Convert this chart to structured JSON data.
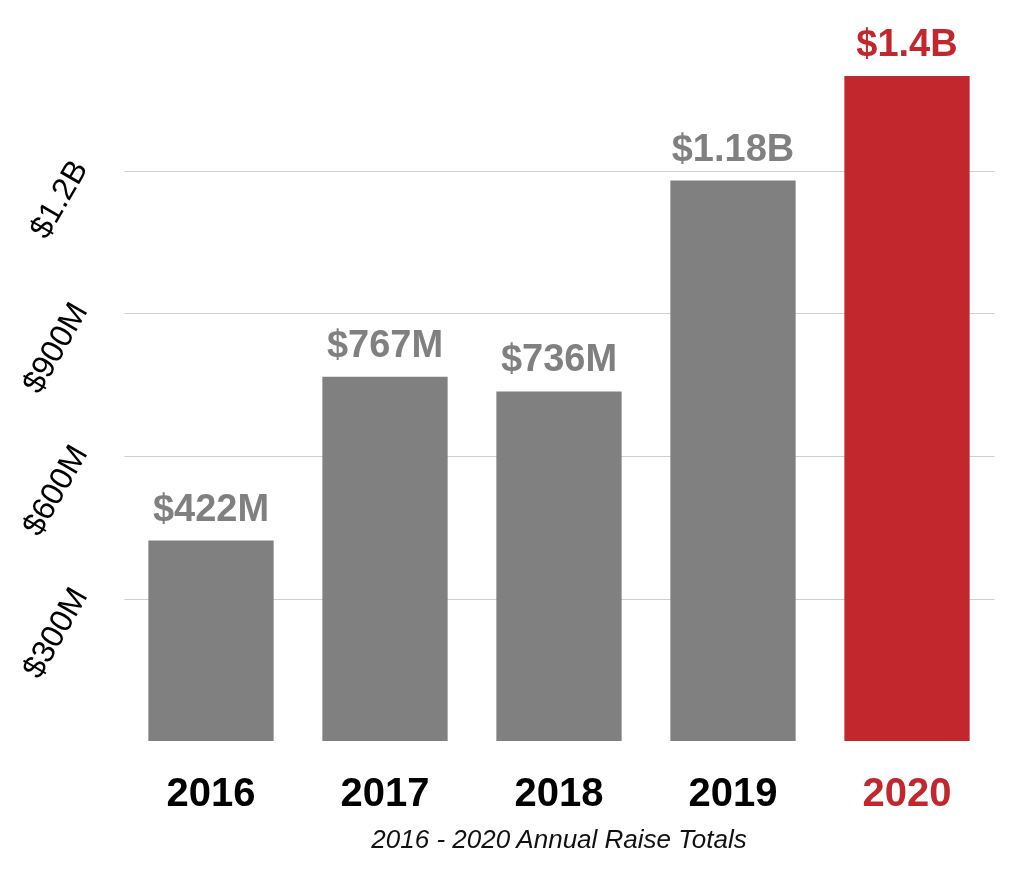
{
  "chart_data": {
    "type": "bar",
    "categories": [
      "2016",
      "2017",
      "2018",
      "2019",
      "2020"
    ],
    "values": [
      422000000,
      767000000,
      736000000,
      1180000000,
      1400000000
    ],
    "colors": [
      "#808080",
      "#808080",
      "#808080",
      "#808080",
      "#c1272d"
    ],
    "value_labels": [
      "$422M",
      "$767M",
      "$736M",
      "$1.18B",
      "$1.4B"
    ],
    "ylim": [
      0,
      1400000000
    ],
    "yticks": [
      {
        "value": 300000000,
        "label": "$300M"
      },
      {
        "value": 600000000,
        "label": "$600M"
      },
      {
        "value": 900000000,
        "label": "$900M"
      },
      {
        "value": 1200000000,
        "label": "$1.2B"
      }
    ],
    "grid": "y",
    "annotations": [
      "2016 - 2020 Annual Raise Totals"
    ]
  }
}
